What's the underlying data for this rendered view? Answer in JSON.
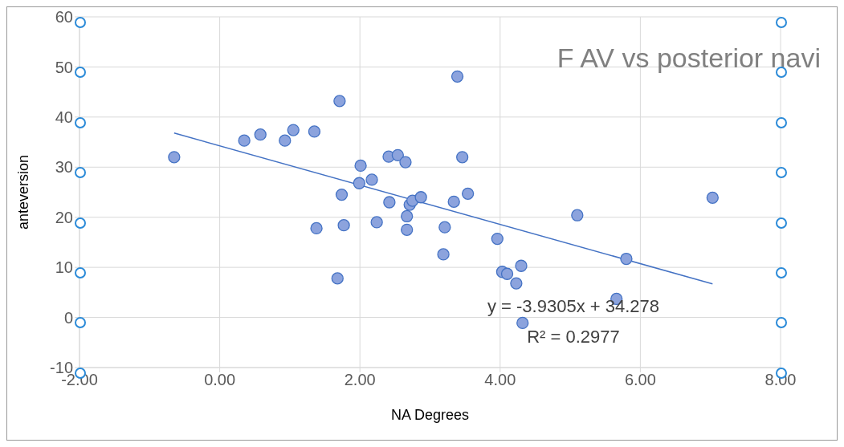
{
  "chart_data": {
    "type": "scatter",
    "title": "F AV vs posterior navi",
    "xlabel": "NA Degrees",
    "ylabel": "anteversion",
    "annotations": [
      "y = -3.9305x + 34.278",
      "R² = 0.2977"
    ],
    "xlim": [
      -2,
      8
    ],
    "xticks": [
      {
        "value": -2,
        "label": "-2.00"
      },
      {
        "value": 0,
        "label": "0.00"
      },
      {
        "value": 2,
        "label": "2.00"
      },
      {
        "value": 4,
        "label": "4.00"
      },
      {
        "value": 6,
        "label": "6.00"
      },
      {
        "value": 8,
        "label": "8.00"
      }
    ],
    "ylim": [
      -10,
      60
    ],
    "yticks": [
      -10,
      0,
      10,
      20,
      30,
      40,
      50,
      60
    ],
    "grid": true,
    "legend": false,
    "marker": "circle",
    "series": [
      {
        "color": "#4472c4",
        "x": [
          -0.65,
          0.35,
          0.58,
          0.93,
          1.05,
          1.35,
          1.38,
          1.71,
          1.74,
          1.77,
          1.68,
          2.01,
          1.99,
          2.17,
          2.24,
          2.42,
          2.41,
          2.54,
          2.65,
          2.67,
          2.67,
          2.71,
          2.75,
          2.87,
          3.21,
          3.19,
          3.34,
          3.39,
          3.46,
          3.54,
          3.96,
          4.03,
          4.1,
          4.23,
          4.3,
          4.32,
          5.1,
          5.66,
          5.8,
          7.03
        ],
        "values": [
          32.0,
          35.3,
          36.5,
          35.3,
          37.4,
          37.1,
          17.8,
          43.2,
          24.5,
          18.4,
          7.8,
          30.3,
          26.8,
          27.5,
          19.0,
          23.0,
          32.1,
          32.4,
          31.0,
          17.5,
          20.2,
          22.5,
          23.3,
          24.0,
          18.0,
          12.6,
          23.1,
          48.1,
          32.0,
          24.7,
          15.7,
          9.1,
          8.7,
          6.8,
          10.3,
          -1.1,
          20.4,
          3.7,
          11.7,
          23.9
        ]
      },
      {
        "type": "line",
        "color": "#4472c4",
        "x": [
          -0.65,
          7.03
        ],
        "values": [
          36.8,
          6.7
        ],
        "line_style": "solid",
        "marker": "none"
      }
    ]
  }
}
